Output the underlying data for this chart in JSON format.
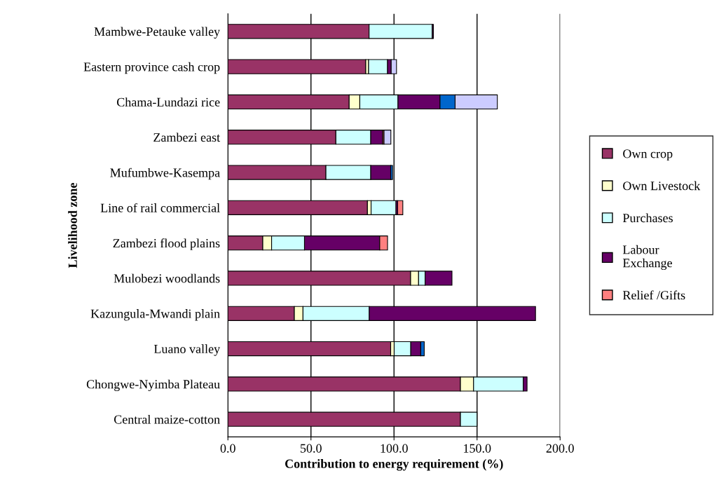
{
  "chart_data": {
    "type": "bar",
    "orientation": "horizontal",
    "stacked": true,
    "xlabel": "Contribution to energy requirement (%)",
    "ylabel": "Livelihood zone",
    "categories": [
      "Mambwe-Petauke valley",
      "Eastern province cash crop",
      "Chama-Lundazi rice",
      "Zambezi east",
      "Mufumbwe-Kasempa",
      "Line of rail commercial",
      "Zambezi flood plains",
      "Mulobezi woodlands",
      "Kazungula-Mwandi plain",
      "Luano valley",
      "Chongwe-Nyimba Plateau",
      "Central maize-cotton"
    ],
    "series": [
      {
        "name": "Own crop",
        "color": "#993366",
        "values": [
          85,
          83,
          73,
          65,
          59,
          84,
          21,
          110,
          40,
          98,
          140,
          140
        ]
      },
      {
        "name": "Own Livestock",
        "color": "#ffffcc",
        "values": [
          null,
          1.7,
          6.4,
          null,
          null,
          2.2,
          5.3,
          4.8,
          5.2,
          2.1,
          7.9,
          null
        ]
      },
      {
        "name": "Purchases",
        "color": "#ccffff",
        "values": [
          38,
          11.4,
          23,
          21,
          27,
          15,
          19.8,
          3.9,
          39.9,
          10,
          29.9,
          10
        ]
      },
      {
        "name": "Labour\nExchange",
        "color": "#660066",
        "values": [
          0.7,
          2.2,
          25.3,
          7.2,
          12,
          1,
          45.3,
          16.2,
          100.1,
          6,
          2.3,
          null
        ]
      },
      {
        "name": "Relief /Gifts",
        "color": "#ff8080",
        "values": [
          null,
          null,
          null,
          0.8,
          null,
          3.1,
          4.7,
          null,
          null,
          null,
          null,
          null
        ]
      },
      {
        "color": "#0066cc",
        "values": [
          null,
          null,
          9.1,
          null,
          1.1,
          null,
          null,
          null,
          null,
          2.1,
          null,
          null
        ]
      },
      {
        "color": "#ccccff",
        "values": [
          null,
          3.2,
          25.4,
          4.1,
          null,
          null,
          null,
          null,
          null,
          null,
          null,
          null
        ]
      }
    ],
    "xlim": [
      0,
      200
    ],
    "xticks": [
      {
        "value": 0,
        "label": "0.0"
      },
      {
        "value": 50,
        "label": "50.0"
      },
      {
        "value": 100,
        "label": "100.0"
      },
      {
        "value": 150,
        "label": "150.0"
      },
      {
        "value": 200,
        "label": "200.0"
      }
    ],
    "grid": "x",
    "legend": "right"
  }
}
